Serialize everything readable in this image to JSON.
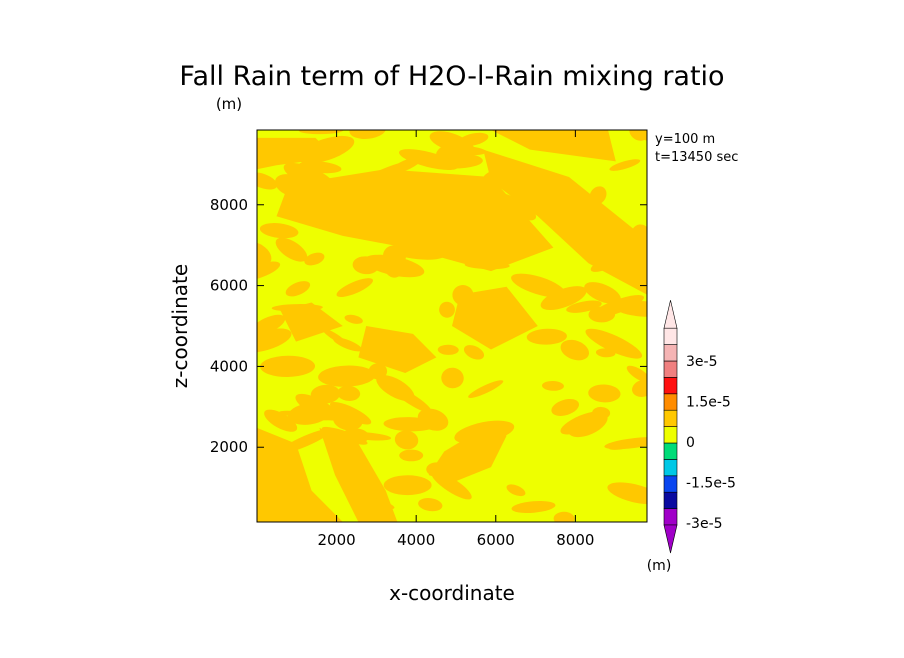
{
  "chart_data": {
    "type": "heatmap",
    "title": "Fall Rain term of H2O-l-Rain mixing ratio",
    "title_unit": "(m)",
    "xlabel": "x-coordinate",
    "ylabel": "z-coordinate",
    "annotation": {
      "line1": "y=100 m",
      "line2": "t=13450 sec"
    },
    "xlim": [
      0,
      9800
    ],
    "ylim": [
      150,
      9850
    ],
    "xticks": [
      {
        "value": 2000,
        "label": "2000"
      },
      {
        "value": 4000,
        "label": "4000"
      },
      {
        "value": 6000,
        "label": "6000"
      },
      {
        "value": 8000,
        "label": "8000"
      }
    ],
    "yticks": [
      {
        "value": 2000,
        "label": "2000"
      },
      {
        "value": 4000,
        "label": "4000"
      },
      {
        "value": 6000,
        "label": "6000"
      },
      {
        "value": 8000,
        "label": "8000"
      }
    ],
    "field_colors": {
      "low": "#eeff00",
      "high": "#ffc800"
    },
    "colorbar": {
      "unit": "(m)",
      "colors": [
        "#a000c8",
        "#0a0aa0",
        "#0a46f0",
        "#00c8e6",
        "#00dc78",
        "#eeff00",
        "#ffc800",
        "#ff8c00",
        "#ff1010",
        "#f08080",
        "#f5b4b4",
        "#ffe6e6"
      ],
      "labels": [
        {
          "text": "3e-5",
          "value": 3e-05
        },
        {
          "text": "1.5e-5",
          "value": 1.5e-05
        },
        {
          "text": "0",
          "value": 0
        },
        {
          "text": "-1.5e-5",
          "value": -1.5e-05
        },
        {
          "text": "-3e-5",
          "value": -3e-05
        }
      ]
    }
  }
}
